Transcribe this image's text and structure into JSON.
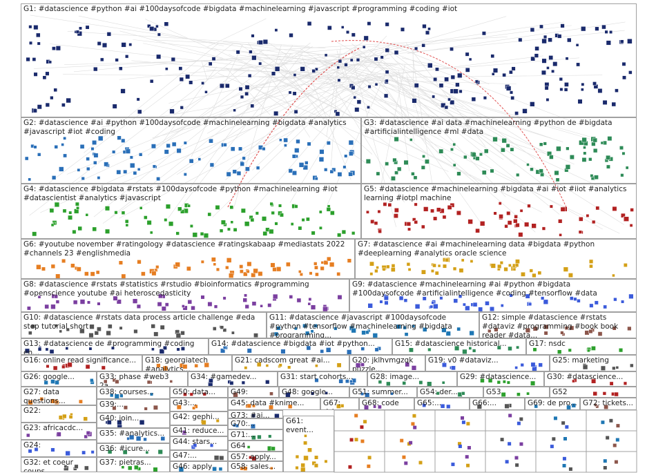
{
  "groups": [
    "G1: #datascience #python #ai #100daysofcode #bigdata #machinelearning #javascript #programming #coding #iot",
    "G2: #datascience #ai #python #100daysofcode #machinelearning #bigdata #analytics #javascript #iot #coding",
    "G3: #datascience #ai data #machinelearning #python de #bigdata #artificialintelligence #ml #data",
    "G4: #datascience #bigdata #rstats #100daysofcode #python #machinelearning #iot #datascientist #analytics #javascript",
    "G5: #datascience #machinelearning #bigdata #ai #iot #iiot #analytics learning #iotpl machine",
    "G6: #youtube november #ratingology #datascience #ratingskabaap #mediastats 2022 #channels 23 #englishmedia",
    "G7: #datascience #ai #machinelearning data #bigdata #python #deeplearning #analytics oracle science",
    "G8: #datascience #rstats #statistics #rstudio #bioinformatics #programming #openscience youtube #ai heteroscedasticity",
    "G9: #datascience #machinelearning #ai #python #bigdata #100daysofcode #artificialintelligence #coding #tensorflow #data",
    "G10: #datascience #rstats data process article challenge #eda step tutorial short",
    "G11: #datascience #javascript #100daysofcode #python #tensorflow #machinelearning #bigdata #programming...",
    "G12: simple #datascience #rstats #dataviz #programming #book book reader #data...",
    "G13: #datascience de #programming #coding en...",
    "G14: #datascience #bigdata #iot #python...",
    "G15: #datascience historical...",
    "G17: nsdc",
    "G16: online read significance...",
    "G18: georgiatech #analytics...",
    "G21: cadscom great #ai...",
    "G20: jklhvmgzqk puzzle...",
    "G19: v0 #dataviz...",
    "G25: marketing",
    "G26: google...",
    "G33: phase #web3 2a...",
    "G34: #gamedev...",
    "G31: start cohorts...",
    "G28: image...",
    "G29: #datascience...",
    "G30: #datascience...",
    "G27: data questions...",
    "G22:",
    "G23: africacdc...",
    "G24:",
    "G32: et coeur coups...",
    "G38: courses...",
    "G39:...",
    "G40: join...",
    "G35: #analytics...",
    "G36: #icure...",
    "G37: pietras...",
    "G50: data...",
    "G43:...",
    "G42: gephi...",
    "G41: reduce...",
    "G44: stars...",
    "G47:...",
    "G46: apply 15...",
    "G49: #port...",
    "G48: google...",
    "G51: summer...",
    "G54: der...",
    "G53",
    "G52",
    "G45: data #knime...",
    "G67: risk...",
    "G68: code",
    "G65:...",
    "G66:...",
    "G69: de pro...",
    "G72: tickets...",
    "G73: #ai...",
    "G70:...",
    "G71:...",
    "G64",
    "G57: apply...",
    "G58: sales...",
    "G61: event..."
  ]
}
